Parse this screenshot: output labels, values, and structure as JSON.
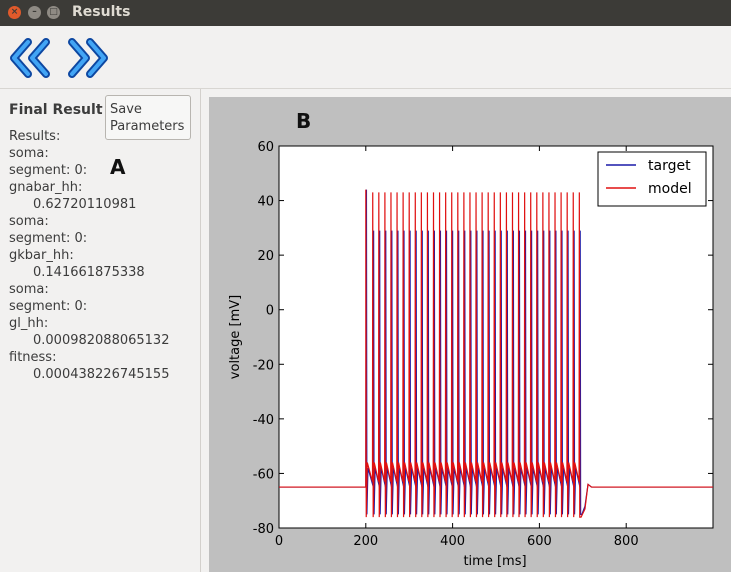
{
  "window": {
    "title": "Results",
    "close_glyph": "×",
    "min_glyph": "–",
    "max_glyph": "□"
  },
  "toolbar": {
    "back_icon": "double-chevron-left-icon",
    "forward_icon": "double-chevron-right-icon",
    "accent_color": "#1565d8"
  },
  "left_panel": {
    "title": "Final Result",
    "save_button": {
      "line1": "Save",
      "line2": "Parameters"
    },
    "panel_letter": "A",
    "results": [
      {
        "text": "Results:"
      },
      {
        "text": "soma:"
      },
      {
        "text": "segment: 0:"
      },
      {
        "text": "gnabar_hh:"
      },
      {
        "text": "0.62720110981",
        "indent": true
      },
      {
        "text": "soma:"
      },
      {
        "text": "segment: 0:"
      },
      {
        "text": "gkbar_hh:"
      },
      {
        "text": "0.141661875338",
        "indent": true
      },
      {
        "text": "soma:"
      },
      {
        "text": "segment: 0:"
      },
      {
        "text": "gl_hh:"
      },
      {
        "text": "0.000982088065132",
        "indent": true
      },
      {
        "text": "fitness:"
      },
      {
        "text": "0.000438226745155",
        "indent": true
      }
    ]
  },
  "plot": {
    "panel_letter": "B"
  },
  "chart_data": {
    "type": "line",
    "xlabel": "time [ms]",
    "ylabel": "voltage [mV]",
    "xlim": [
      0,
      1000
    ],
    "ylim": [
      -80,
      60
    ],
    "xticks": [
      0,
      200,
      400,
      600,
      800
    ],
    "yticks": [
      60,
      40,
      20,
      0,
      -20,
      -40,
      -60,
      -80
    ],
    "legend_position": "top-right",
    "grid": false,
    "rest_potential": -65,
    "stimulus": {
      "start": 200,
      "end": 700
    },
    "series": [
      {
        "name": "target",
        "color": "#1a1aa8",
        "spike_times": [
          201.5,
          218,
          232,
          246,
          260,
          274,
          288,
          302,
          316,
          330,
          344,
          358,
          372,
          386,
          400,
          414,
          428,
          442,
          456,
          470,
          484,
          498,
          512,
          526,
          540,
          554,
          568,
          582,
          596,
          610,
          624,
          638,
          652,
          666,
          680,
          694
        ],
        "spike_peak": 29,
        "first_spike_peak": 44,
        "trough": -75,
        "recovery_level": -58
      },
      {
        "name": "model",
        "color": "#e01010",
        "spike_times": [
          200,
          216,
          230,
          244,
          258,
          272,
          286,
          300,
          314,
          328,
          342,
          356,
          370,
          384,
          398,
          412,
          426,
          440,
          454,
          468,
          482,
          496,
          510,
          524,
          538,
          552,
          566,
          580,
          594,
          608,
          622,
          636,
          650,
          664,
          678,
          692
        ],
        "spike_peak": 43,
        "first_spike_peak": 44,
        "trough": -76,
        "recovery_level": -56
      }
    ]
  }
}
